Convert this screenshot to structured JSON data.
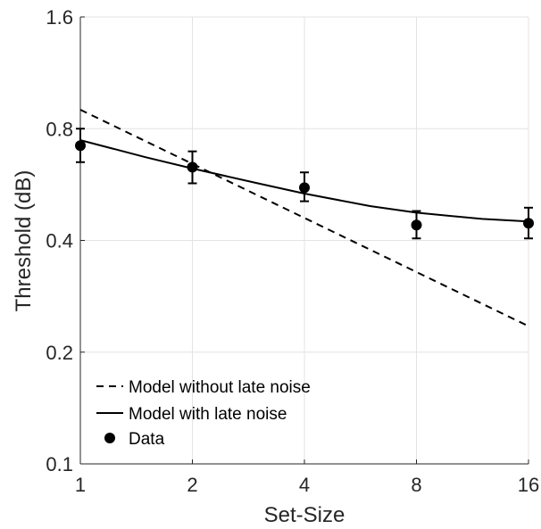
{
  "chart_data": {
    "type": "line",
    "xlabel": "Set-Size",
    "ylabel": "Threshold (dB)",
    "x_scale": "log2",
    "y_scale": "log2",
    "xlim": [
      1,
      16
    ],
    "ylim": [
      0.1,
      1.6
    ],
    "x_ticks": [
      1,
      2,
      4,
      8,
      16
    ],
    "x_tick_labels": [
      "1",
      "2",
      "4",
      "8",
      "16"
    ],
    "y_ticks": [
      0.1,
      0.2,
      0.4,
      0.8,
      1.6
    ],
    "y_tick_labels": [
      "0.1",
      "0.2",
      "0.4",
      "0.8",
      "1.6"
    ],
    "grid": true,
    "legend_position": "bottom-left",
    "series": [
      {
        "name": "Model without late noise",
        "kind": "line",
        "style": "dashed",
        "color": "#000000",
        "x": [
          1,
          16
        ],
        "y": [
          0.9,
          0.235
        ]
      },
      {
        "name": "Model with late noise",
        "kind": "line",
        "style": "solid",
        "color": "#000000",
        "x": [
          1,
          1.5,
          2,
          3,
          4,
          6,
          8,
          12,
          16
        ],
        "y": [
          0.745,
          0.67,
          0.625,
          0.57,
          0.535,
          0.495,
          0.475,
          0.457,
          0.45
        ]
      },
      {
        "name": "Data",
        "kind": "scatter",
        "color": "#000000",
        "x": [
          1,
          2,
          4,
          8,
          16
        ],
        "y": [
          0.72,
          0.63,
          0.555,
          0.44,
          0.445
        ],
        "err_low": [
          0.65,
          0.57,
          0.51,
          0.405,
          0.405
        ],
        "err_high": [
          0.8,
          0.695,
          0.61,
          0.48,
          0.49
        ]
      }
    ]
  }
}
